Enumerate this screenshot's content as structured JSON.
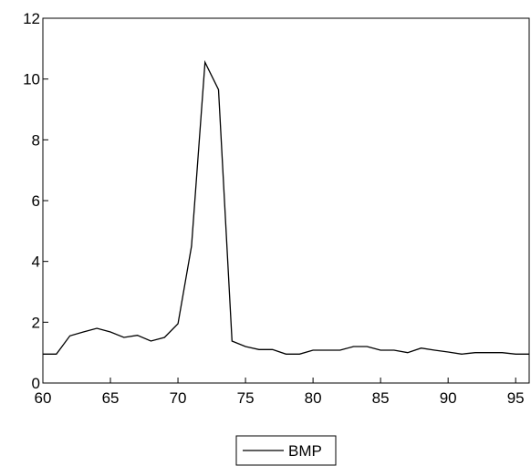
{
  "chart_data": {
    "type": "line",
    "title": "",
    "xlabel": "",
    "ylabel": "",
    "xlim": [
      60,
      96
    ],
    "ylim": [
      0,
      12
    ],
    "xticks": [
      60,
      65,
      70,
      75,
      80,
      85,
      90,
      95
    ],
    "yticks": [
      0,
      2,
      4,
      6,
      8,
      10,
      12
    ],
    "grid": false,
    "legend_position": "bottom-center",
    "line_color": "#000000",
    "series": [
      {
        "name": "BMP",
        "x": [
          60,
          61,
          62,
          63,
          64,
          65,
          66,
          67,
          68,
          69,
          70,
          71,
          72,
          73,
          74,
          75,
          76,
          77,
          78,
          79,
          80,
          81,
          82,
          83,
          84,
          85,
          86,
          87,
          88,
          89,
          90,
          91,
          92,
          93,
          94,
          95,
          96
        ],
        "y": [
          0.95,
          0.95,
          1.55,
          1.68,
          1.8,
          1.68,
          1.5,
          1.57,
          1.38,
          1.5,
          1.95,
          4.5,
          10.55,
          9.65,
          1.38,
          1.2,
          1.1,
          1.1,
          0.95,
          0.95,
          1.08,
          1.08,
          1.08,
          1.2,
          1.2,
          1.08,
          1.08,
          1.0,
          1.15,
          1.08,
          1.02,
          0.95,
          1.0,
          1.0,
          1.0,
          0.95,
          0.95
        ]
      }
    ]
  }
}
